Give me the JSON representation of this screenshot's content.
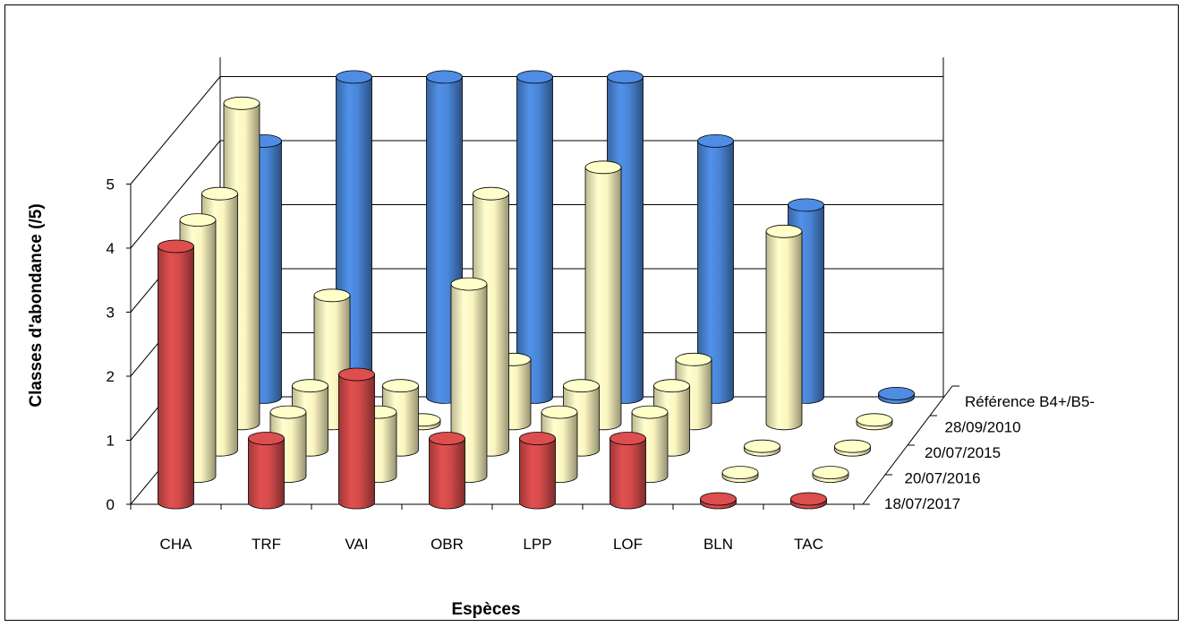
{
  "chart_data": {
    "type": "bar",
    "title": "",
    "xlabel": "Espèces",
    "ylabel": "Classes d'abondance  (/5)",
    "ylim": [
      0,
      5
    ],
    "yticks": [
      "0",
      "1",
      "2",
      "3",
      "4",
      "5"
    ],
    "categories": [
      "CHA",
      "TRF",
      "VAI",
      "OBR",
      "LPP",
      "LOF",
      "BLN",
      "TAC"
    ],
    "series": [
      {
        "name": "Référence B4+/B5-",
        "color": "#4a86d8",
        "values": [
          4,
          5,
          5,
          5,
          5,
          4,
          3,
          0
        ]
      },
      {
        "name": "28/09/2010",
        "color": "#fbf5c0",
        "values": [
          5,
          2,
          0,
          1,
          4,
          1,
          3,
          0
        ]
      },
      {
        "name": "20/07/2015",
        "color": "#fbf5c0",
        "values": [
          4,
          1,
          1,
          4,
          1,
          1,
          0,
          0
        ]
      },
      {
        "name": "20/07/2016",
        "color": "#fbf5c0",
        "values": [
          4,
          1,
          1,
          3,
          1,
          1,
          0,
          0
        ]
      },
      {
        "name": "18/07/2017",
        "color": "#d24a4a",
        "values": [
          4,
          1,
          2,
          1,
          1,
          1,
          0,
          0
        ]
      }
    ],
    "style": "3d-cylinder",
    "grid": true
  }
}
